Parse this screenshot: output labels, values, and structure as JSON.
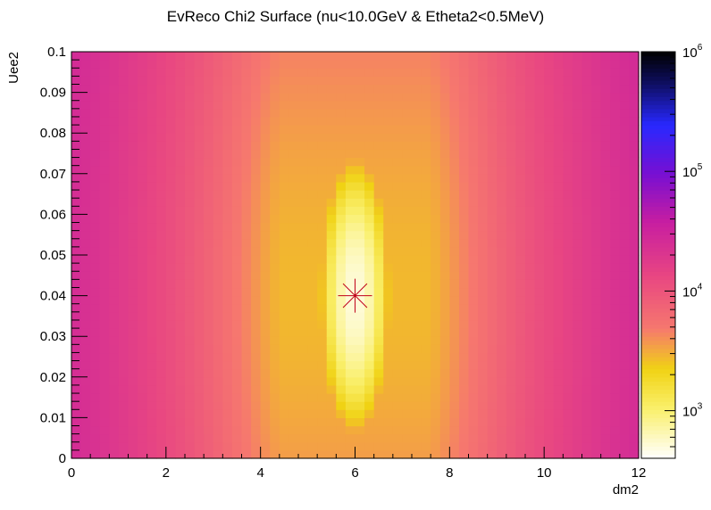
{
  "chart_data": {
    "type": "heatmap",
    "title": "EvReco Chi2 Surface (nu<10.0GeV & Etheta2<0.5MeV)",
    "xlabel": "dm2",
    "ylabel": "Uee2",
    "xlim": [
      0,
      12
    ],
    "ylim": [
      0,
      0.1
    ],
    "x_ticks": [
      "0",
      "2",
      "4",
      "6",
      "8",
      "10",
      "12"
    ],
    "y_ticks": [
      "0",
      "0.01",
      "0.02",
      "0.03",
      "0.04",
      "0.05",
      "0.06",
      "0.07",
      "0.08",
      "0.09",
      "0.1"
    ],
    "x_bins": 60,
    "y_bins": 50,
    "z_scale": "log",
    "z_range": [
      400,
      1000000
    ],
    "z_ticks": [
      {
        "base": "10",
        "exp": "3",
        "value": 1000
      },
      {
        "base": "10",
        "exp": "4",
        "value": 10000
      },
      {
        "base": "10",
        "exp": "5",
        "value": 100000
      },
      {
        "base": "10",
        "exp": "6",
        "value": 1000000
      }
    ],
    "palette": "kBird-like: white-yellow-pink-magenta-purple-blue-black",
    "minimum": {
      "x": 6.0,
      "y": 0.04,
      "z": 500,
      "marker": "star",
      "color": "#c0001a"
    },
    "surface_samples": [
      {
        "x": 1,
        "y": 0.05,
        "z": 35000
      },
      {
        "x": 3,
        "y": 0.05,
        "z": 18000
      },
      {
        "x": 4.5,
        "y": 0.05,
        "z": 4500
      },
      {
        "x": 6,
        "y": 0.08,
        "z": 3500
      },
      {
        "x": 6,
        "y": 0.06,
        "z": 1100
      },
      {
        "x": 6,
        "y": 0.05,
        "z": 900
      },
      {
        "x": 6,
        "y": 0.04,
        "z": 500
      },
      {
        "x": 6,
        "y": 0.02,
        "z": 1100
      },
      {
        "x": 6,
        "y": 0.0,
        "z": 4000
      },
      {
        "x": 8,
        "y": 0.05,
        "z": 9000
      },
      {
        "x": 10,
        "y": 0.05,
        "z": 25000
      },
      {
        "x": 11.5,
        "y": 0.05,
        "z": 32000
      }
    ]
  }
}
